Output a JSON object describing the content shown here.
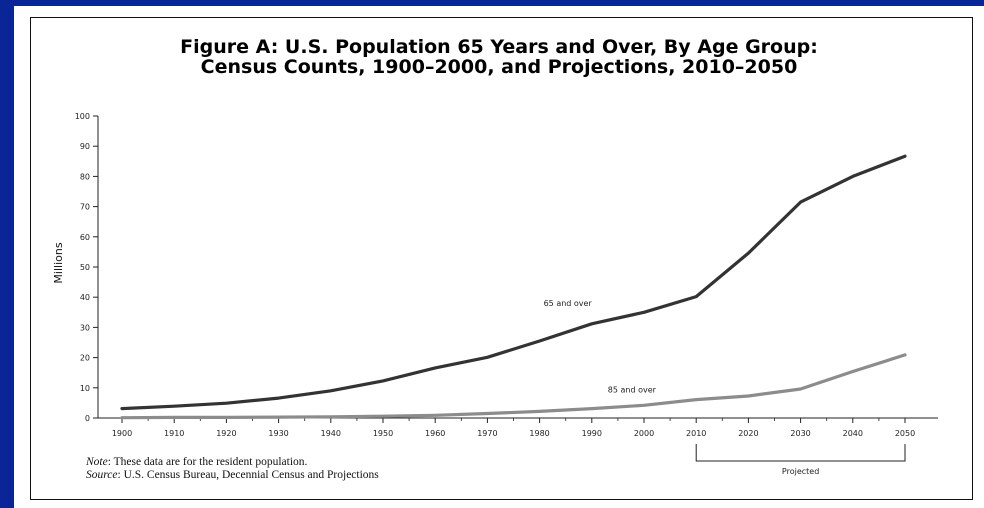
{
  "chart_data": {
    "type": "line",
    "title_line1": "Figure A: U.S. Population 65 Years and Over, By Age Group:",
    "title_line2": "Census Counts, 1900–2000, and Projections, 2010–2050",
    "ylabel": "Millions",
    "xlabel": "",
    "ylim": [
      0,
      100
    ],
    "yticks": [
      0,
      10,
      20,
      30,
      40,
      50,
      60,
      70,
      80,
      90,
      100
    ],
    "x": [
      1900,
      1910,
      1920,
      1930,
      1940,
      1950,
      1960,
      1970,
      1980,
      1990,
      2000,
      2010,
      2020,
      2030,
      2040,
      2050
    ],
    "grid": false,
    "series": [
      {
        "name": "65 and over",
        "color": "#333333",
        "values": [
          3.1,
          3.9,
          4.9,
          6.6,
          9.0,
          12.3,
          16.6,
          20.1,
          25.5,
          31.2,
          35.0,
          40.2,
          54.6,
          71.5,
          80.0,
          86.7
        ]
      },
      {
        "name": "85 and over",
        "color": "#8c8c8c",
        "values": [
          0.1,
          0.2,
          0.2,
          0.3,
          0.4,
          0.6,
          0.9,
          1.5,
          2.2,
          3.1,
          4.2,
          6.1,
          7.3,
          9.6,
          15.4,
          20.9
        ]
      }
    ],
    "annotations": {
      "projected_label": "Projected",
      "projected_from": 2010,
      "projected_to": 2050
    }
  },
  "footer": {
    "note_label": "Note",
    "note_text": ": These data are for the resident population.",
    "source_label": "Source",
    "source_text": ": U.S. Census Bureau, Decennial Census and Projections"
  }
}
